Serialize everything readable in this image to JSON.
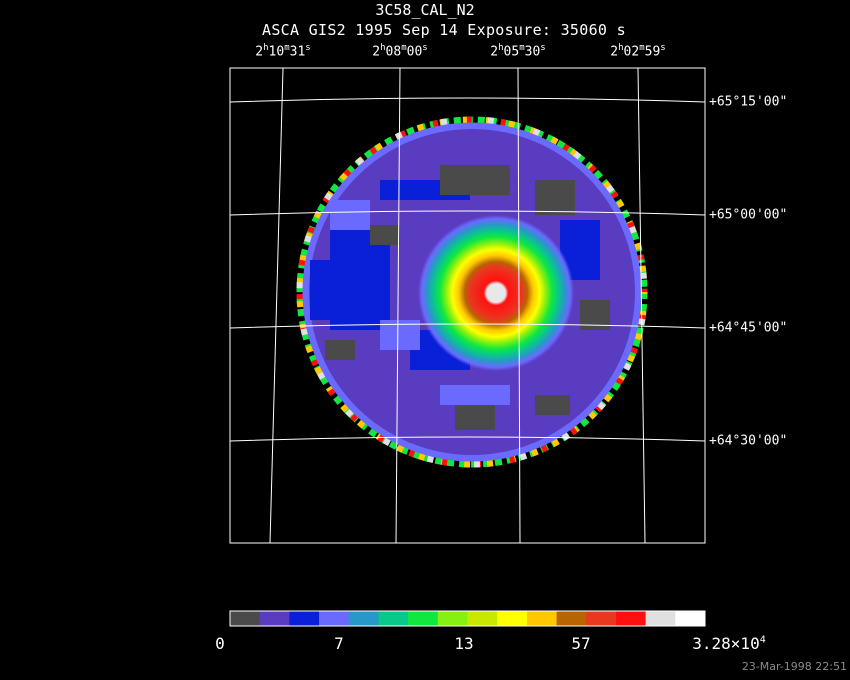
{
  "title": "3C58_CAL_N2",
  "subtitle": "ASCA GIS2   1995 Sep 14    Exposure: 35060 s",
  "ra_labels": [
    {
      "h": "2",
      "m": "10",
      "s": "31"
    },
    {
      "h": "2",
      "m": "08",
      "s": "00"
    },
    {
      "h": "2",
      "m": "05",
      "s": "30"
    },
    {
      "h": "2",
      "m": "02",
      "s": "59"
    }
  ],
  "dec_labels": [
    "+65°15'00\"",
    "+65°00'00\"",
    "+64°45'00\"",
    "+64°30'00\""
  ],
  "colorbar": {
    "colors": [
      "#4a4a4a",
      "#5a3cc0",
      "#0a20d8",
      "#6a6aff",
      "#2898c8",
      "#08c88a",
      "#10e840",
      "#88f010",
      "#c8e800",
      "#ffff00",
      "#ffc800",
      "#b86400",
      "#e83820",
      "#ff1010",
      "#e0e0e0",
      "#ffffff"
    ],
    "labels": [
      {
        "text": "0"
      },
      {
        "text": "7"
      },
      {
        "text": "13"
      },
      {
        "text": "57"
      },
      {
        "text": "3.28×10",
        "sup": "4"
      }
    ]
  },
  "timestamp": "23-Mar-1998 22:51"
}
